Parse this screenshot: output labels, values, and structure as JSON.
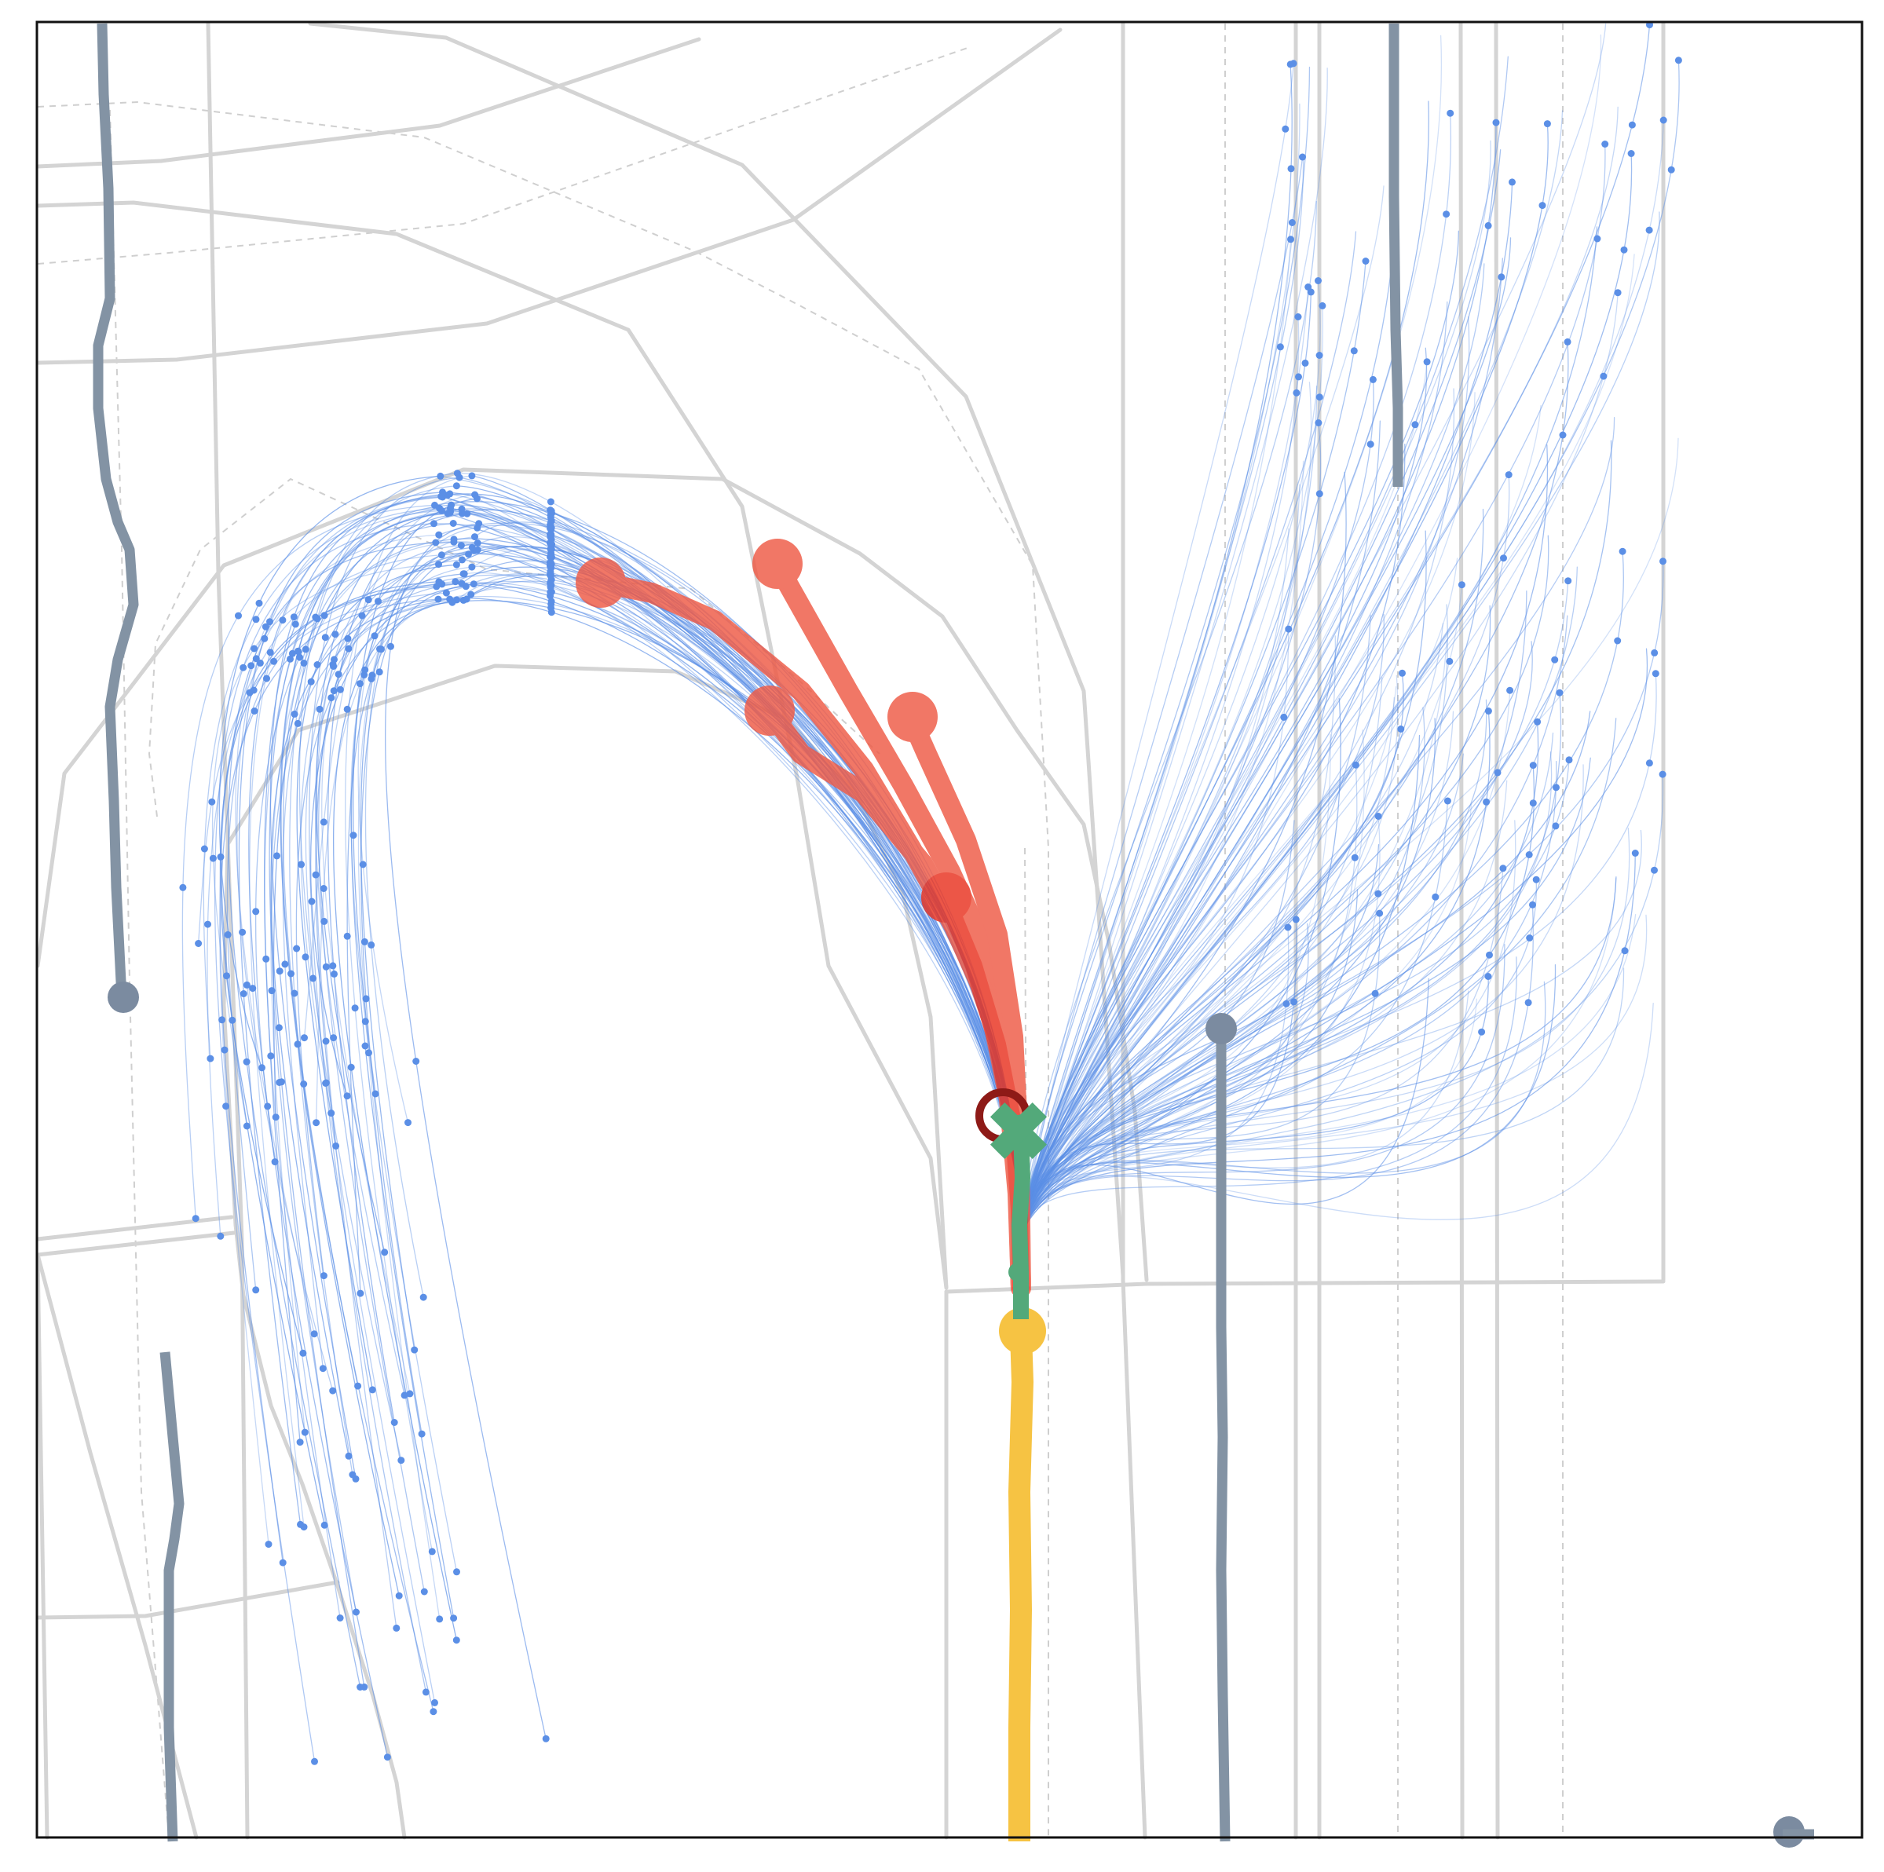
{
  "scene": {
    "type": "trajectory_prediction_map",
    "colors": {
      "background": "#ffffff",
      "road_boundary": "#d4d4d4",
      "lane_centerline": "#cfcfcf",
      "other_agents": "#8393a4",
      "candidate_trajectories": "#5b8fe6",
      "predicted_trajectories": "#ef5a45",
      "history": "#f6c343",
      "ground_truth": "#53a97a",
      "current_position": "#8e1a17"
    },
    "legend": null,
    "agents": [
      {
        "name": "ego-history",
        "color": "yellow"
      },
      {
        "name": "ground-truth-future",
        "color": "green",
        "marker": "x"
      },
      {
        "name": "predicted-modes",
        "color": "red",
        "count": 5
      },
      {
        "name": "other-vehicles",
        "color": "slate-gray",
        "count": 6
      }
    ],
    "candidate_fans": [
      {
        "name": "u-turn-candidates",
        "direction": "left-loop"
      },
      {
        "name": "straight-candidates",
        "direction": "north-east"
      }
    ]
  }
}
